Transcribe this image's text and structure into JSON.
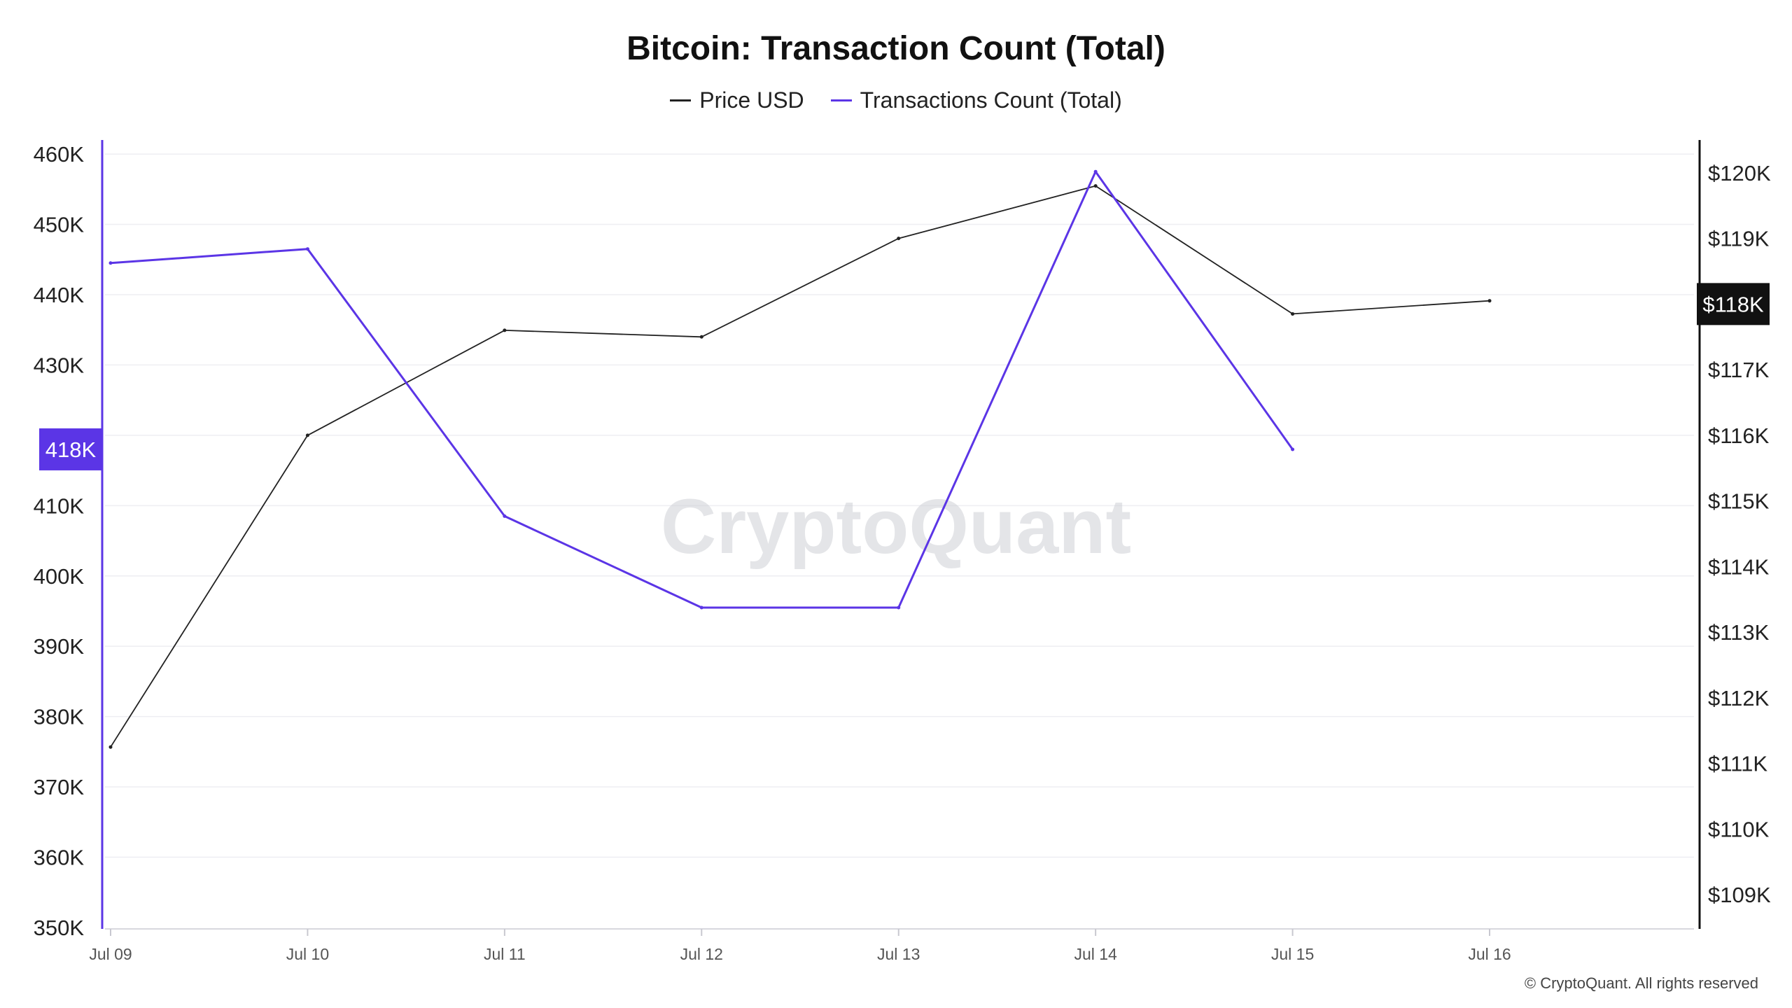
{
  "chart_data": {
    "type": "line",
    "title": "Bitcoin: Transaction Count (Total)",
    "categories": [
      "Jul 09",
      "Jul 10",
      "Jul 11",
      "Jul 12",
      "Jul 13",
      "Jul 14",
      "Jul 15",
      "Jul 16"
    ],
    "left_axis": {
      "ticks": [
        "460K",
        "450K",
        "440K",
        "430K",
        "410K",
        "400K",
        "390K",
        "380K",
        "370K",
        "360K",
        "350K"
      ],
      "tick_values": [
        460000,
        450000,
        440000,
        430000,
        410000,
        400000,
        390000,
        380000,
        370000,
        360000,
        350000
      ],
      "range": [
        350000,
        462000
      ]
    },
    "right_axis": {
      "ticks": [
        "$120K",
        "$119K",
        "$118K",
        "$117K",
        "$116K",
        "$115K",
        "$114K",
        "$113K",
        "$112K",
        "$111K",
        "$110K",
        "$109K"
      ],
      "tick_values": [
        120000,
        119000,
        118000,
        117000,
        116000,
        115000,
        114000,
        113000,
        112000,
        111000,
        110000,
        109000
      ],
      "range": [
        108500,
        120500
      ]
    },
    "series": [
      {
        "name": "Price USD",
        "axis": "right",
        "color": "#222222",
        "values": [
          111250,
          116000,
          117600,
          117500,
          119000,
          119800,
          117850,
          118050
        ]
      },
      {
        "name": "Transactions Count (Total)",
        "axis": "left",
        "color": "#5b35e6",
        "values": [
          444500,
          446500,
          408500,
          395500,
          395500,
          457500,
          418000,
          null
        ]
      }
    ],
    "left_marker": {
      "label": "418K",
      "value": 418000,
      "color": "#5b35e6"
    },
    "right_marker": {
      "label": "$118K",
      "value": 118000,
      "color": "#111111"
    },
    "grid": true,
    "legend_position": "top-center"
  },
  "watermark": "CryptoQuant",
  "copyright": "© CryptoQuant. All rights reserved"
}
